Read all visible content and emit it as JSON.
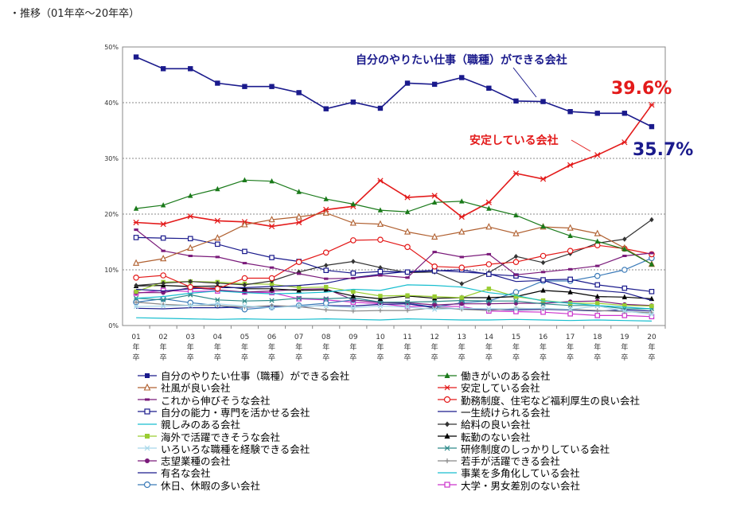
{
  "page": {
    "title": "・推移（01年卒〜20年卒）"
  },
  "chart_data": {
    "type": "line",
    "title": "",
    "xlabel": "",
    "ylabel": "",
    "ylim": [
      0,
      50
    ],
    "yticks": [
      "0%",
      "10%",
      "20%",
      "30%",
      "40%",
      "50%"
    ],
    "categories": [
      "01年卒",
      "02年卒",
      "03年卒",
      "04年卒",
      "05年卒",
      "06年卒",
      "07年卒",
      "08年卒",
      "09年卒",
      "10年卒",
      "11年卒",
      "12年卒",
      "13年卒",
      "14年卒",
      "15年卒",
      "16年卒",
      "17年卒",
      "18年卒",
      "19年卒",
      "20年卒"
    ],
    "grid": true,
    "legend_position": "bottom",
    "annotations": [
      {
        "text": "自分のやりたい仕事（職種）ができる会社",
        "color": "#1a1a8c"
      },
      {
        "text": "安定している会社",
        "color": "#e31a1a"
      },
      {
        "text": "39.6%",
        "color": "#e31a1a"
      },
      {
        "text": "35.7%",
        "color": "#1a1a8c"
      }
    ],
    "series": [
      {
        "name": "自分のやりたい仕事（職種）ができる会社",
        "color": "#1a1a8c",
        "marker": "square-filled",
        "values": [
          48.2,
          46.1,
          46.1,
          43.5,
          42.9,
          42.9,
          41.8,
          38.9,
          40.1,
          39.0,
          43.5,
          43.3,
          44.5,
          42.6,
          40.3,
          40.2,
          38.4,
          38.1,
          38.1,
          35.7
        ]
      },
      {
        "name": "働きがいのある会社",
        "color": "#1a7a1a",
        "marker": "triangle-filled",
        "values": [
          21.0,
          21.6,
          23.3,
          24.5,
          26.1,
          25.9,
          24.0,
          22.7,
          21.8,
          20.7,
          20.4,
          22.1,
          22.3,
          21.0,
          19.8,
          17.8,
          16.1,
          15.1,
          13.7,
          11.0
        ]
      },
      {
        "name": "社風が良い会社",
        "color": "#b06030",
        "marker": "triangle-open",
        "values": [
          11.2,
          12.0,
          13.9,
          15.7,
          18.1,
          19.0,
          19.5,
          20.2,
          18.4,
          18.2,
          16.8,
          15.9,
          16.8,
          17.7,
          16.5,
          17.7,
          17.5,
          16.5,
          13.9,
          11.0
        ]
      },
      {
        "name": "安定している会社",
        "color": "#e31a1a",
        "marker": "star",
        "values": [
          18.5,
          18.2,
          19.6,
          18.8,
          18.6,
          17.8,
          18.5,
          20.8,
          21.4,
          26.0,
          23.0,
          23.3,
          19.5,
          22.1,
          27.3,
          26.3,
          28.8,
          30.6,
          32.9,
          39.6
        ]
      },
      {
        "name": "これから伸びそうな会社",
        "color": "#7a1a7a",
        "marker": "bar-filled",
        "values": [
          17.2,
          13.4,
          12.5,
          12.3,
          11.2,
          10.4,
          9.3,
          8.4,
          8.5,
          9.0,
          8.6,
          13.2,
          12.3,
          12.8,
          9.1,
          9.6,
          10.1,
          10.7,
          12.5,
          13.0
        ]
      },
      {
        "name": "勤務制度、住宅など福利厚生の良い会社",
        "color": "#e31a1a",
        "marker": "circle-open",
        "values": [
          8.6,
          9.0,
          6.9,
          6.6,
          8.5,
          8.5,
          11.4,
          13.1,
          15.3,
          15.4,
          14.1,
          10.6,
          10.4,
          11.0,
          11.4,
          12.5,
          13.4,
          14.4,
          13.8,
          12.8
        ]
      },
      {
        "name": "自分の能力・専門を活かせる会社",
        "color": "#1a1a8c",
        "marker": "square-open",
        "values": [
          15.8,
          15.7,
          15.6,
          14.6,
          13.3,
          12.2,
          11.5,
          9.9,
          9.4,
          9.7,
          9.6,
          9.8,
          10.0,
          9.2,
          8.9,
          8.2,
          8.3,
          7.3,
          6.7,
          6.1
        ]
      },
      {
        "name": "一生続けられる会社",
        "color": "#1a1a8c",
        "marker": "line",
        "values": [
          6.5,
          6.2,
          6.6,
          6.8,
          6.8,
          7.0,
          7.2,
          7.6,
          8.6,
          9.2,
          9.7,
          9.9,
          9.6,
          9.3,
          7.9,
          8.1,
          6.7,
          6.3,
          5.9,
          4.5
        ]
      },
      {
        "name": "親しみのある会社",
        "color": "#17becf",
        "marker": "line",
        "values": [
          4.9,
          5.2,
          5.8,
          6.2,
          5.9,
          5.7,
          5.8,
          6.0,
          6.5,
          6.3,
          7.3,
          7.2,
          6.9,
          5.9,
          5.4,
          4.4,
          4.0,
          3.6,
          3.3,
          3.0
        ]
      },
      {
        "name": "給料の良い会社",
        "color": "#333333",
        "marker": "diamond-filled",
        "values": [
          7.2,
          7.6,
          7.9,
          7.6,
          7.3,
          8.0,
          9.6,
          10.8,
          11.5,
          10.4,
          9.5,
          9.6,
          7.5,
          9.5,
          12.4,
          11.3,
          12.9,
          14.8,
          15.5,
          19.0
        ]
      },
      {
        "name": "海外で活躍できそうな会社",
        "color": "#9acd32",
        "marker": "square-filled",
        "values": [
          6.1,
          7.8,
          7.9,
          7.8,
          7.5,
          7.4,
          6.8,
          6.9,
          6.1,
          5.3,
          5.4,
          5.2,
          5.0,
          6.6,
          5.2,
          4.5,
          4.0,
          4.0,
          3.6,
          3.5
        ]
      },
      {
        "name": "転勤のない会社",
        "color": "#000000",
        "marker": "triangle-filled",
        "values": [
          7.1,
          7.2,
          7.0,
          7.1,
          6.6,
          6.6,
          6.3,
          6.4,
          5.3,
          4.8,
          5.3,
          4.9,
          5.0,
          5.0,
          5.2,
          6.3,
          6.0,
          5.2,
          5.1,
          4.8
        ]
      },
      {
        "name": "いろいろな職種を経験できる会社",
        "color": "#a8d8ea",
        "marker": "star",
        "values": [
          3.4,
          3.5,
          3.6,
          3.9,
          3.5,
          3.2,
          3.5,
          3.5,
          3.2,
          3.5,
          3.3,
          2.9,
          3.1,
          3.0,
          3.0,
          3.1,
          2.9,
          3.5,
          2.6,
          2.0
        ]
      },
      {
        "name": "研修制度のしっかりしている会社",
        "color": "#2e8b8b",
        "marker": "star",
        "values": [
          4.9,
          4.6,
          5.5,
          4.6,
          4.4,
          4.5,
          4.9,
          4.8,
          5.0,
          4.2,
          4.2,
          4.3,
          4.5,
          4.4,
          4.4,
          3.9,
          3.6,
          3.6,
          3.0,
          3.0
        ]
      },
      {
        "name": "志望業種の会社",
        "color": "#7a1a7a",
        "marker": "circle-filled",
        "values": [
          5.9,
          5.9,
          6.8,
          6.4,
          6.0,
          6.2,
          6.5,
          6.6,
          4.6,
          4.1,
          4.1,
          3.7,
          3.9,
          3.9,
          4.0,
          4.0,
          4.3,
          4.4,
          3.8,
          3.6
        ]
      },
      {
        "name": "若手が活躍できる会社",
        "color": "#888888",
        "marker": "plus",
        "values": [
          4.2,
          3.8,
          3.6,
          3.6,
          3.3,
          3.6,
          3.4,
          2.8,
          2.6,
          2.7,
          2.7,
          3.2,
          2.9,
          2.7,
          3.1,
          3.0,
          2.9,
          2.7,
          2.5,
          2.3
        ]
      },
      {
        "name": "有名な会社",
        "color": "#1a1a8c",
        "marker": "line",
        "values": [
          3.1,
          3.0,
          3.2,
          3.2,
          3.3,
          3.4,
          3.4,
          3.6,
          3.5,
          3.8,
          3.9,
          3.2,
          3.0,
          2.9,
          2.8,
          2.9,
          2.8,
          2.6,
          2.8,
          2.6
        ]
      },
      {
        "name": "事業を多角化している会社",
        "color": "#17becf",
        "marker": "line",
        "values": [
          1.4,
          1.3,
          1.2,
          1.1,
          1.2,
          1.1,
          1.1,
          1.2,
          1.1,
          1.0,
          1.2,
          1.1,
          1.0,
          1.0,
          1.1,
          1.0,
          0.9,
          1.0,
          0.9,
          0.8
        ]
      },
      {
        "name": "休日、休暇の多い会社",
        "color": "#3a7ab8",
        "marker": "circle-open",
        "values": [
          4.2,
          4.8,
          4.1,
          3.6,
          2.9,
          3.3,
          3.6,
          4.0,
          4.6,
          4.2,
          4.0,
          3.3,
          4.1,
          4.4,
          6.0,
          8.0,
          8.0,
          8.9,
          10.0,
          12.1
        ]
      },
      {
        "name": "大学・男女差別のない会社",
        "color": "#cc33cc",
        "marker": "square-open",
        "values": [
          5.8,
          6.3,
          6.1,
          6.2,
          6.0,
          5.9,
          4.8,
          4.6,
          4.2,
          3.9,
          3.4,
          3.5,
          3.4,
          2.6,
          2.5,
          2.4,
          2.1,
          1.8,
          1.8,
          1.6
        ]
      }
    ]
  }
}
